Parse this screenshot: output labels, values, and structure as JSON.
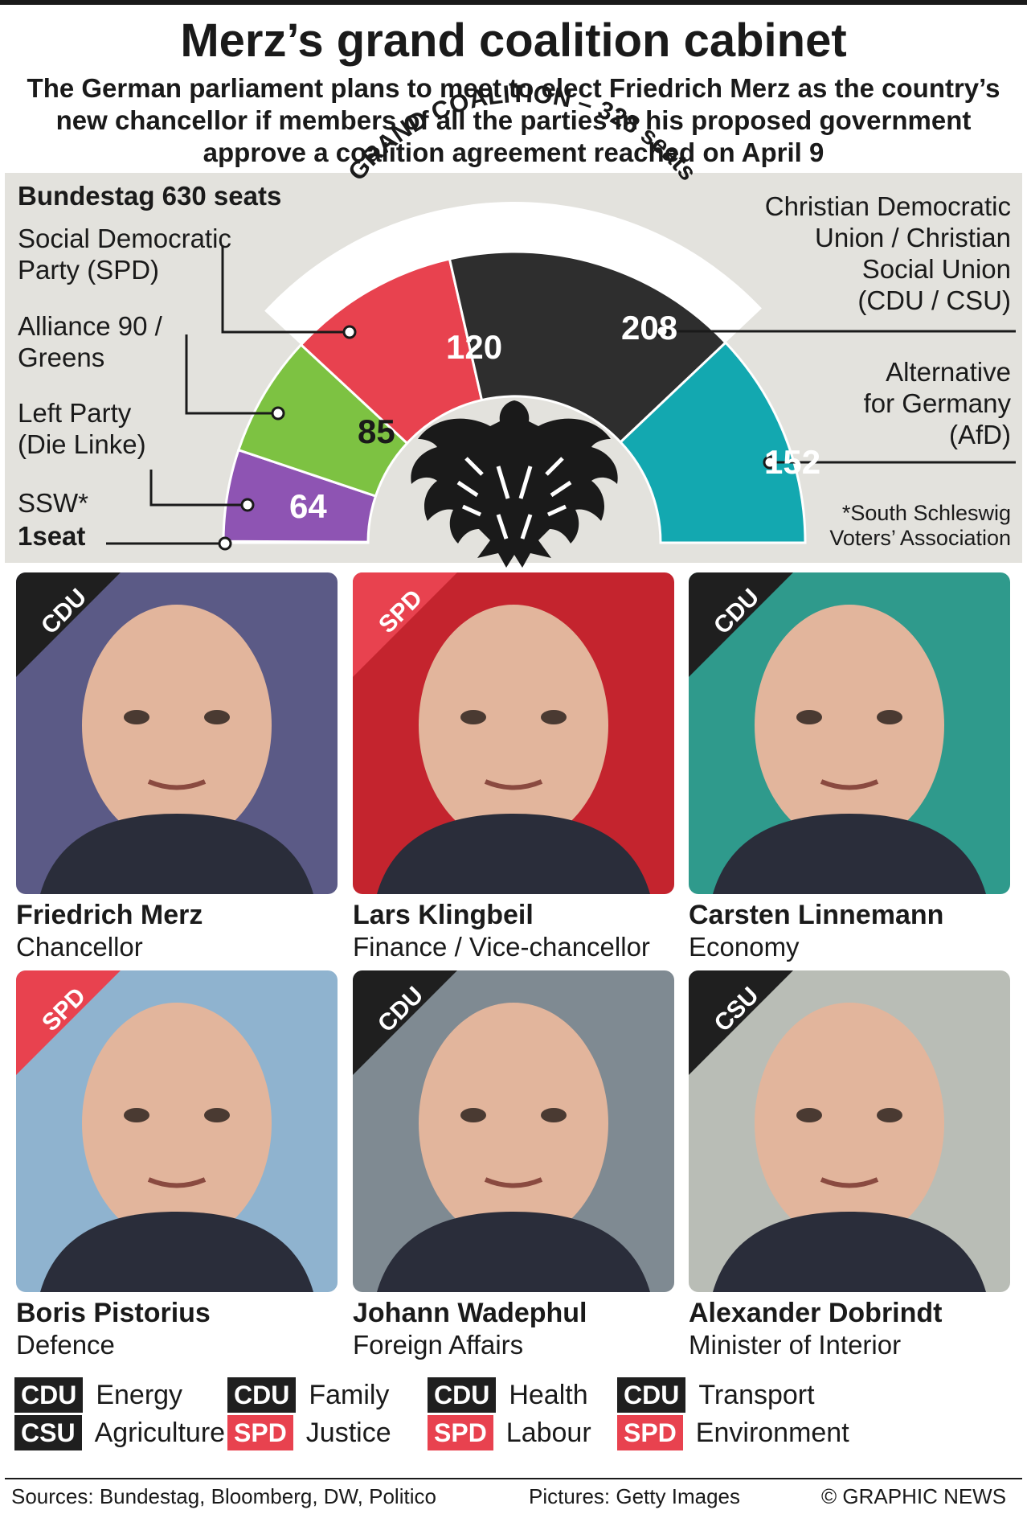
{
  "title": "Merz’s grand coalition cabinet",
  "subtitle": "The German parliament plans to meet to elect Friedrich Merz as the country’s new chancellor if members of all the parties in his proposed government approve a coalition agreement reached on April 9",
  "parliament": {
    "heading": "Bundestag 630 seats",
    "coalition_label": "GRAND COALITION – 328 seats",
    "parties": [
      {
        "name": "Social Democratic Party (SPD)",
        "line1": "Social Democratic",
        "line2": "Party (SPD)",
        "seats": 120,
        "color": "#e8424f"
      },
      {
        "name": "Alliance 90 / Greens",
        "line1": "Alliance 90 /",
        "line2": "Greens",
        "seats": 85,
        "color": "#7dc242"
      },
      {
        "name": "Left Party (Die Linke)",
        "line1": "Left Party",
        "line2": "(Die Linke)",
        "seats": 64,
        "color": "#8e54b3"
      },
      {
        "name": "SSW*",
        "line1": "SSW*",
        "line2": "1seat",
        "seats": 1,
        "color": "#8e54b3"
      },
      {
        "name": "Christian Democratic Union / Christian Social Union (CDU / CSU)",
        "line1": "Christian Democratic",
        "line2": "Union / Christian",
        "line3": "Social Union",
        "line4": "(CDU / CSU)",
        "seats": 208,
        "color": "#2e2e2e"
      },
      {
        "name": "Alternative for Germany (AfD)",
        "line1": "Alternative",
        "line2": "for Germany",
        "line3": "(AfD)",
        "seats": 152,
        "color": "#13a8b0"
      }
    ],
    "footnote_line1": "*South Schleswig",
    "footnote_line2": "Voters’ Association"
  },
  "cabinet": [
    {
      "party": "CDU",
      "name": "Friedrich Merz",
      "role": "Chancellor",
      "bg": "#5b5a86",
      "tag_color": "#1f1f1f"
    },
    {
      "party": "SPD",
      "name": "Lars Klingbeil",
      "role": "Finance / Vice-chancellor",
      "bg": "#c4242e",
      "tag_color": "#e8424f"
    },
    {
      "party": "CDU",
      "name": "Carsten Linnemann",
      "role": "Economy",
      "bg": "#2f9a8c",
      "tag_color": "#1f1f1f"
    },
    {
      "party": "SPD",
      "name": "Boris Pistorius",
      "role": "Defence",
      "bg": "#8fb3cf",
      "tag_color": "#e8424f"
    },
    {
      "party": "CDU",
      "name": "Johann Wadephul",
      "role": "Foreign Affairs",
      "bg": "#7f8a92",
      "tag_color": "#1f1f1f"
    },
    {
      "party": "CSU",
      "name": "Alexander Dobrindt",
      "role": "Minister of Interior",
      "bg": "#b9bdb6",
      "tag_color": "#1f1f1f"
    }
  ],
  "other_ministries": [
    [
      {
        "party": "CDU",
        "label": "Energy"
      },
      {
        "party": "CDU",
        "label": "Family"
      },
      {
        "party": "CDU",
        "label": "Health"
      },
      {
        "party": "CDU",
        "label": "Transport"
      }
    ],
    [
      {
        "party": "CSU",
        "label": "Agriculture"
      },
      {
        "party": "SPD",
        "label": "Justice"
      },
      {
        "party": "SPD",
        "label": "Labour"
      },
      {
        "party": "SPD",
        "label": "Environment"
      }
    ]
  ],
  "footer": {
    "sources": "Sources: Bundestag, Bloomberg, DW, Politico",
    "pictures": "Pictures: Getty Images",
    "credit": "© GRAPHIC NEWS"
  }
}
